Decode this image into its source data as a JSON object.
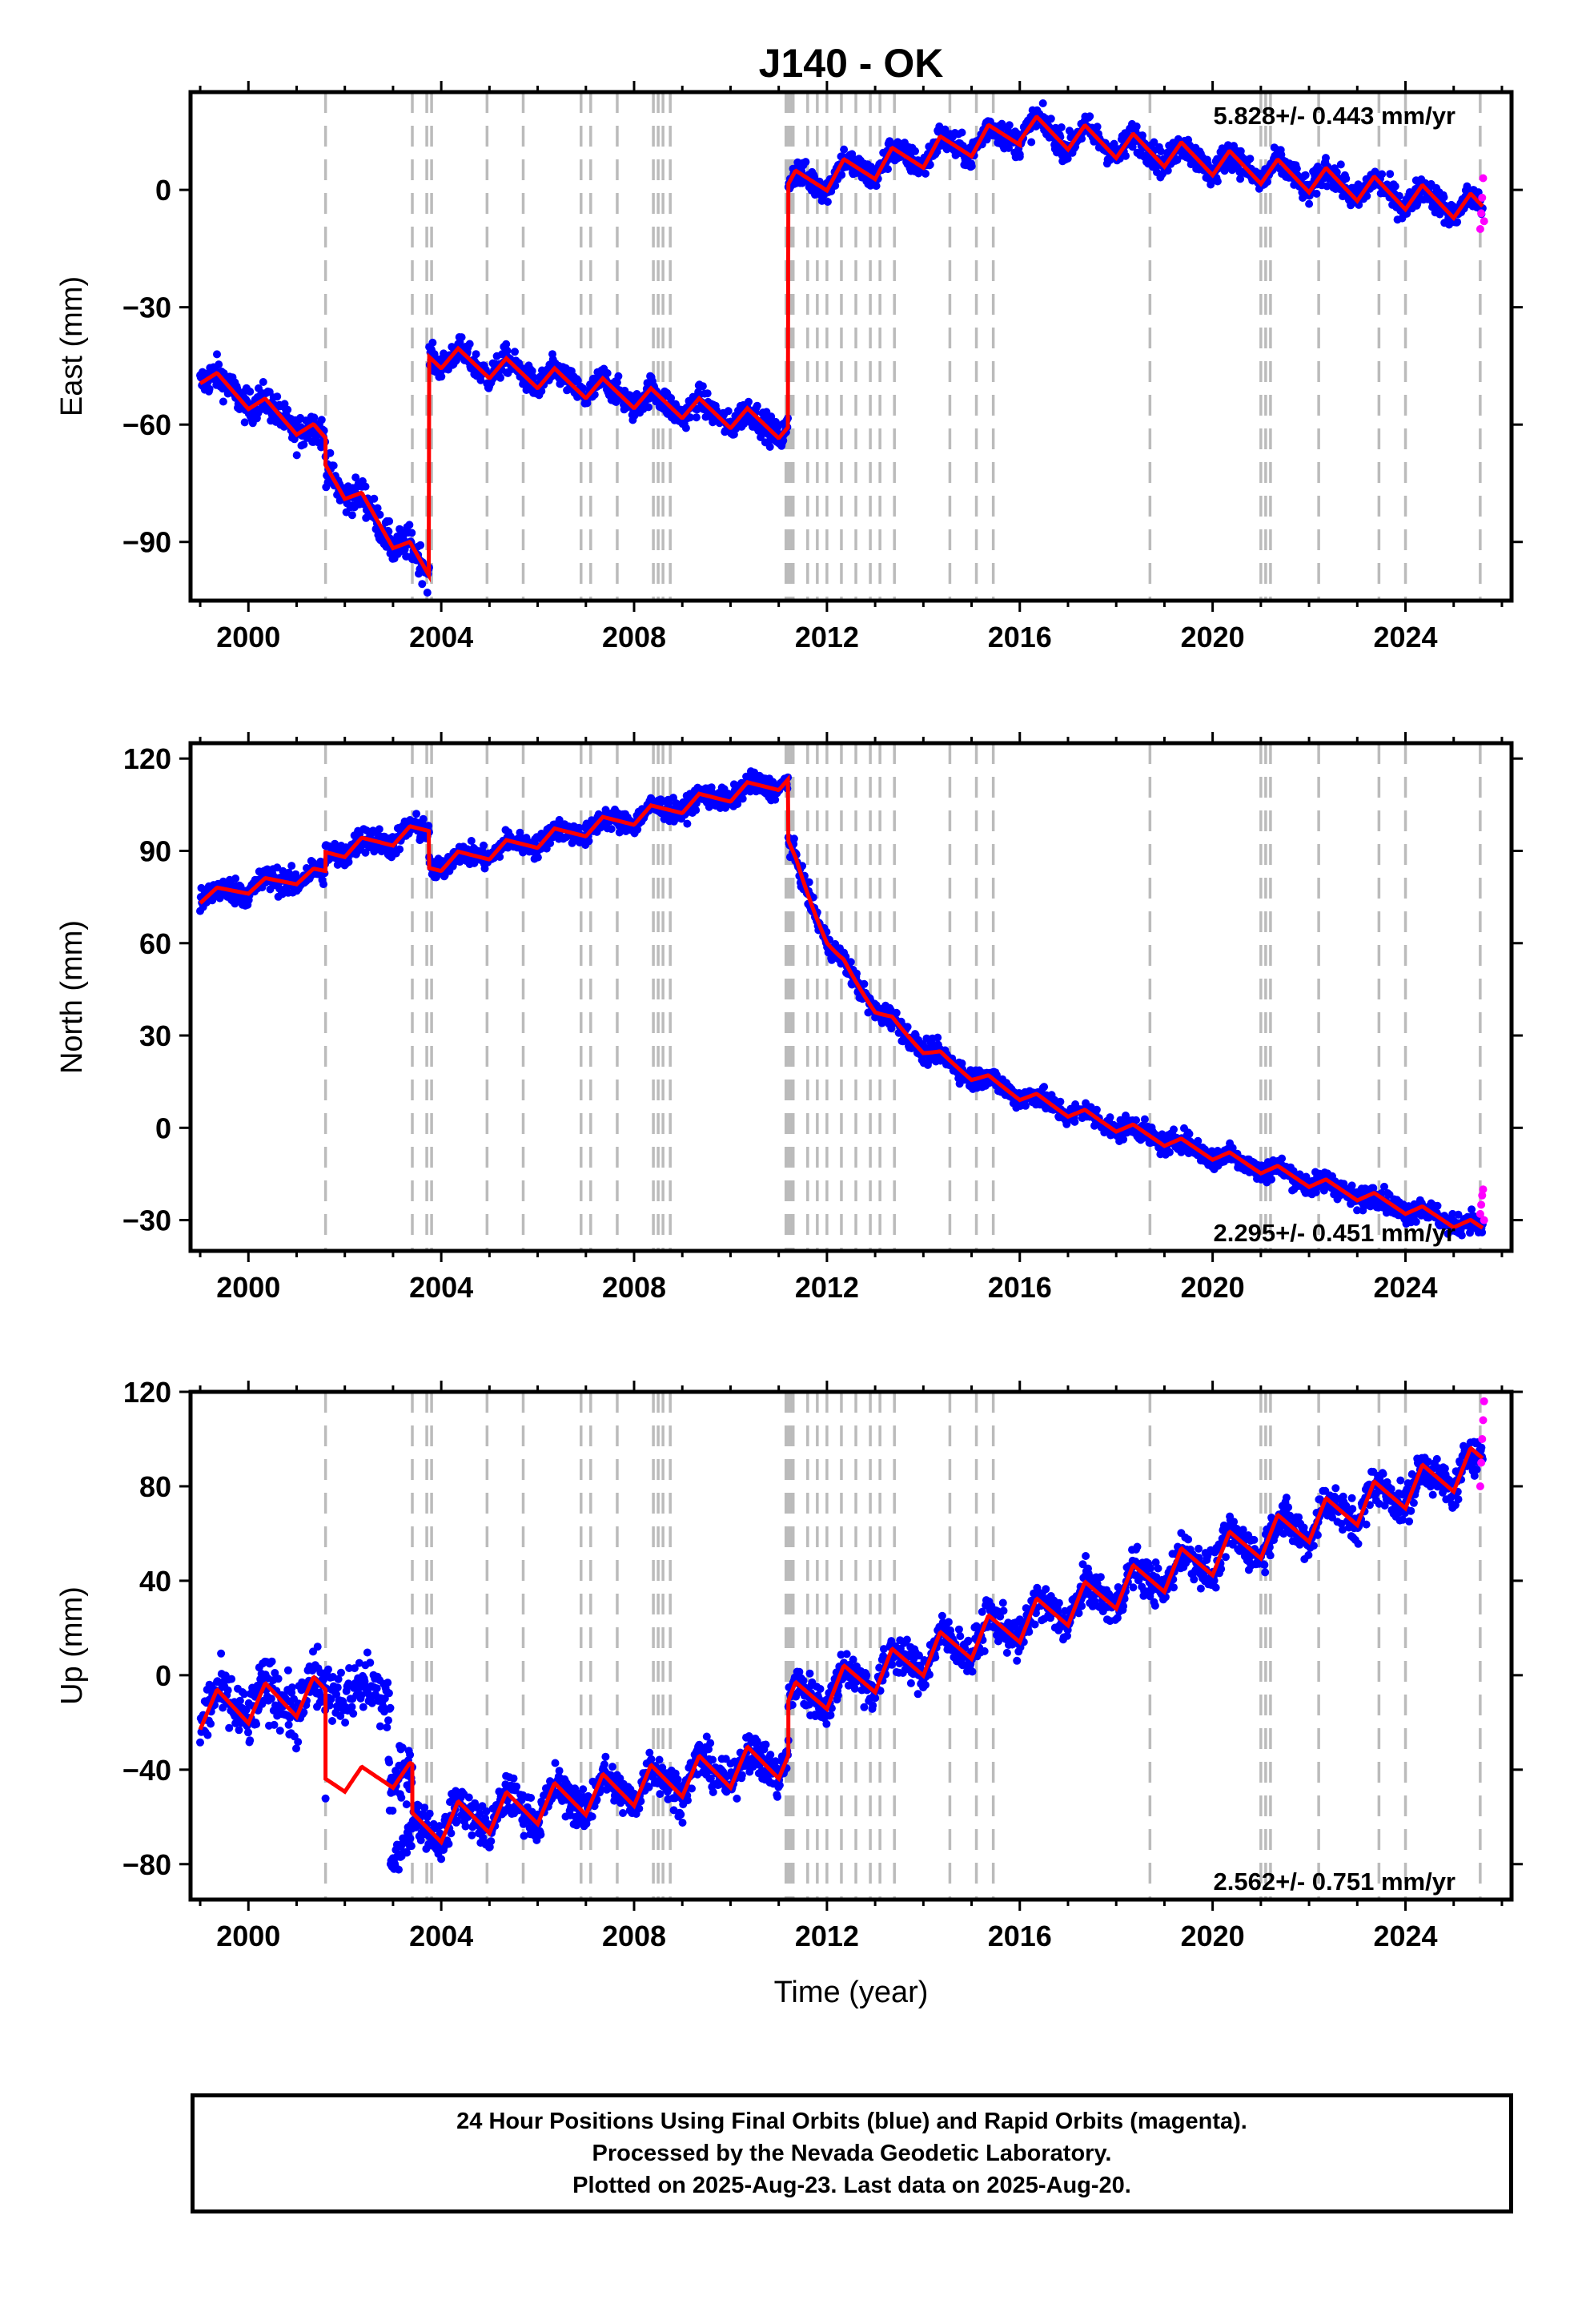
{
  "chart_data": {
    "type": "scatter",
    "title": "J140 - OK",
    "xlabel": "Time (year)",
    "xlim": [
      1998.8,
      2026.2
    ],
    "x_ticks": [
      "2000",
      "2004",
      "2008",
      "2012",
      "2016",
      "2020",
      "2024"
    ],
    "x_tick_values": [
      2000,
      2004,
      2008,
      2012,
      2016,
      2020,
      2024
    ],
    "event_lines": [
      2001.6,
      2003.4,
      2003.7,
      2003.8,
      2004.95,
      2005.7,
      2006.9,
      2007.1,
      2007.65,
      2008.4,
      2008.5,
      2008.6,
      2008.75,
      2011.15,
      2011.2,
      2011.25,
      2011.3,
      2011.6,
      2011.8,
      2012.0,
      2012.3,
      2012.6,
      2012.9,
      2013.1,
      2013.4,
      2014.55,
      2015.1,
      2015.45,
      2018.7,
      2021.0,
      2021.1,
      2021.2,
      2022.2,
      2023.45,
      2024.0,
      2025.55
    ],
    "colors": {
      "final_orbits": "#0000ff",
      "rapid_orbits": "#ff00ff",
      "model": "#ff0000",
      "event_lines": "#bbbbbb"
    },
    "panels": [
      {
        "ylabel": "East (mm)",
        "ylim": [
          -105,
          25
        ],
        "y_ticks": [
          "0",
          "−30",
          "−60",
          "−90"
        ],
        "y_tick_values": [
          0,
          -30,
          -60,
          -90
        ],
        "rate": "5.828+/- 0.443 mm/yr",
        "rate_position": "top-right",
        "segments": [
          {
            "x0": 1999.0,
            "x1": 2001.6,
            "y0": -47,
            "y1": -64,
            "amp": 2.5,
            "noise": 3
          },
          {
            "x0": 2001.6,
            "x1": 2003.75,
            "y0": -71,
            "y1": -98,
            "amp": 3,
            "noise": 3
          },
          {
            "x0": 2003.75,
            "x1": 2011.2,
            "y0": -42,
            "y1": -61,
            "amp": 3,
            "noise": 2.5
          },
          {
            "x0": 2011.2,
            "x1": 2016.0,
            "y0": 1,
            "y1": 15,
            "amp": 3.5,
            "noise": 2.5
          },
          {
            "x0": 2016.0,
            "x1": 2025.6,
            "y0": 16,
            "y1": -5,
            "amp": 3.5,
            "noise": 2.5
          }
        ],
        "rapid": [
          -10,
          -6,
          -2,
          3,
          -8
        ]
      },
      {
        "ylabel": "North (mm)",
        "ylim": [
          -40,
          125
        ],
        "y_ticks": [
          "120",
          "90",
          "60",
          "30",
          "0",
          "−30"
        ],
        "y_tick_values": [
          120,
          90,
          60,
          30,
          0,
          -30
        ],
        "rate": "2.295+/- 0.451 mm/yr",
        "rate_position": "bottom-right",
        "segments": [
          {
            "x0": 1999.0,
            "x1": 2001.6,
            "y0": 75,
            "y1": 83,
            "amp": 2,
            "noise": 3
          },
          {
            "x0": 2001.6,
            "x1": 2003.75,
            "y0": 89,
            "y1": 97,
            "amp": 2.5,
            "noise": 3
          },
          {
            "x0": 2003.75,
            "x1": 2011.2,
            "y0": 85,
            "y1": 113,
            "amp": 2.5,
            "noise": 2.5
          },
          {
            "x0": 2011.2,
            "x1": 2025.6,
            "y0": 30,
            "y1": -33,
            "amp": 2,
            "noise": 2.5,
            "decay": 63,
            "tau": 1.4
          }
        ],
        "rapid": [
          -28,
          -25,
          -22,
          -20,
          -30
        ]
      },
      {
        "ylabel": "Up (mm)",
        "ylim": [
          -95,
          120
        ],
        "y_ticks": [
          "120",
          "80",
          "40",
          "0",
          "−40",
          "−80"
        ],
        "y_tick_values": [
          120,
          80,
          40,
          0,
          -40,
          -80
        ],
        "rate": "2.562+/- 0.751 mm/yr",
        "rate_position": "bottom-right",
        "segments": [
          {
            "x0": 1999.0,
            "x1": 2001.6,
            "y0": -15,
            "y1": -8,
            "amp": 8,
            "noise": 9
          },
          {
            "x0": 2001.6,
            "x1": 2003.4,
            "y0": -45,
            "y1": -42,
            "amp": 5,
            "noise": 9,
            "noData": [
              2001.6,
              2002.9
            ]
          },
          {
            "x0": 2003.4,
            "x1": 2011.2,
            "y0": -65,
            "y1": -35,
            "amp": 8,
            "noise": 6
          },
          {
            "x0": 2011.2,
            "x1": 2025.6,
            "y0": -12,
            "y1": 90,
            "amp": 8,
            "noise": 6
          }
        ],
        "rapid": [
          80,
          90,
          100,
          108,
          116
        ]
      }
    ]
  },
  "footer": {
    "line1": "24 Hour Positions Using Final Orbits (blue) and Rapid Orbits (magenta).",
    "line2": "Processed by the Nevada Geodetic Laboratory.",
    "line3": "Plotted on 2025-Aug-23. Last data on 2025-Aug-20."
  }
}
